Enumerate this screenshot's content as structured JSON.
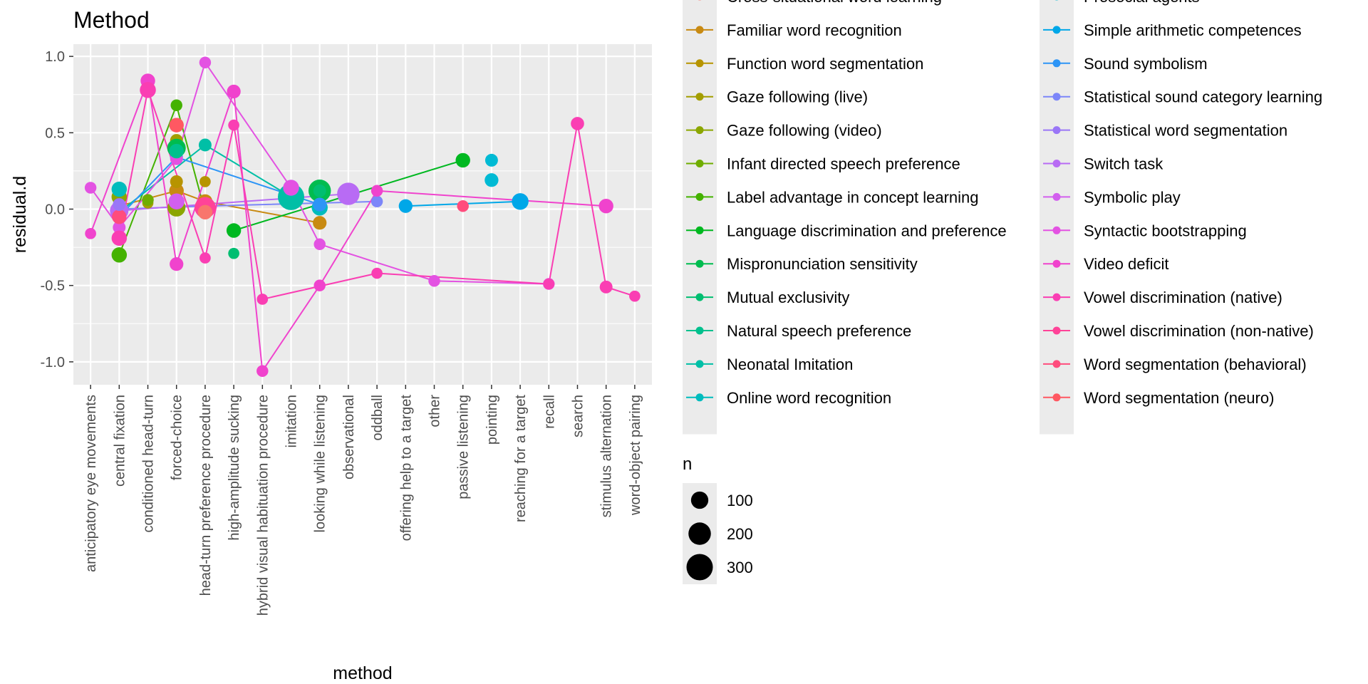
{
  "chart_data": {
    "type": "scatter",
    "title": "Method",
    "xlabel": "method",
    "ylabel": "residual.d",
    "ylim": [
      -1.15,
      1.08
    ],
    "yticks": [
      -1.0,
      -0.5,
      0.0,
      0.5,
      1.0
    ],
    "ytick_labels": [
      "-1.0",
      "-0.5",
      "0.0",
      "0.5",
      "1.0"
    ],
    "grid": true,
    "categories": [
      "anticipatory eye movements",
      "central fixation",
      "conditioned head-turn",
      "forced-choice",
      "head-turn preference procedure",
      "high-amplitude sucking",
      "hybrid visual habituation procedure",
      "imitation",
      "looking while listening",
      "observational",
      "oddball",
      "offering help to a target",
      "other",
      "passive listening",
      "pointing",
      "reaching for a target",
      "recall",
      "search",
      "stimulus alternation",
      "word-object pairing"
    ],
    "legend": {
      "color_title": "",
      "columns": [
        [
          {
            "name": "Cross-situational word learning",
            "color": "#F8766D"
          },
          {
            "name": "Familiar word recognition",
            "color": "#C88A12"
          },
          {
            "name": "Function word segmentation",
            "color": "#B79400"
          },
          {
            "name": "Gaze following (live)",
            "color": "#A39E00"
          },
          {
            "name": "Gaze following (video)",
            "color": "#8BA600"
          },
          {
            "name": "Infant directed speech preference",
            "color": "#6FAD00"
          },
          {
            "name": "Label advantage in concept learning",
            "color": "#44B200"
          },
          {
            "name": "Language discrimination and preference",
            "color": "#00B820"
          },
          {
            "name": "Mispronunciation sensitivity",
            "color": "#00BC4F"
          },
          {
            "name": "Mutual exclusivity",
            "color": "#00BE71"
          },
          {
            "name": "Natural speech preference",
            "color": "#00C08D"
          },
          {
            "name": "Neonatal Imitation",
            "color": "#00BFA6"
          },
          {
            "name": "Online word recognition",
            "color": "#00BCBD"
          }
        ],
        [
          {
            "name": "Prosocial agents",
            "color": "#00BAD4"
          },
          {
            "name": "Simple arithmetic competences",
            "color": "#00A7E8"
          },
          {
            "name": "Sound symbolism",
            "color": "#2D95F6"
          },
          {
            "name": "Statistical sound category learning",
            "color": "#7C86F9"
          },
          {
            "name": "Statistical word segmentation",
            "color": "#9A76F7"
          },
          {
            "name": "Switch task",
            "color": "#B86BF4"
          },
          {
            "name": "Symbolic play",
            "color": "#D25FEE"
          },
          {
            "name": "Syntactic bootstrapping",
            "color": "#E352E2"
          },
          {
            "name": "Video deficit",
            "color": "#F043CD"
          },
          {
            "name": "Vowel discrimination (native)",
            "color": "#FA3EB3"
          },
          {
            "name": "Vowel discrimination (non-native)",
            "color": "#FF4398"
          },
          {
            "name": "Word segmentation (behavioral)",
            "color": "#FF4C7D"
          },
          {
            "name": "Word segmentation (neuro)",
            "color": "#FF5862"
          }
        ]
      ],
      "size_title": "n",
      "size_entries": [
        {
          "label": "100",
          "n": 100
        },
        {
          "label": "200",
          "n": 200
        },
        {
          "label": "300",
          "n": 300
        }
      ]
    },
    "series": [
      {
        "name": "Familiar word recognition",
        "color": "#C88A12",
        "line": true,
        "points": [
          {
            "x": "central fixation",
            "y": 0.02,
            "n": 40
          },
          {
            "x": "forced-choice",
            "y": 0.12,
            "n": 60
          },
          {
            "x": "head-turn preference procedure",
            "y": 0.05,
            "n": 60
          },
          {
            "x": "looking while listening",
            "y": -0.09,
            "n": 50
          }
        ]
      },
      {
        "name": "Function word segmentation",
        "color": "#B79400",
        "line": false,
        "points": [
          {
            "x": "head-turn preference procedure",
            "y": 0.18,
            "n": 25
          },
          {
            "x": "forced-choice",
            "y": 0.18,
            "n": 40
          }
        ]
      },
      {
        "name": "Gaze following (live)",
        "color": "#A39E00",
        "line": false,
        "points": [
          {
            "x": "conditioned head-turn",
            "y": 0.04,
            "n": 25
          },
          {
            "x": "forced-choice",
            "y": 0.45,
            "n": 40
          }
        ]
      },
      {
        "name": "Gaze following (video)",
        "color": "#8BA600",
        "line": false,
        "points": [
          {
            "x": "central fixation",
            "y": 0.08,
            "n": 70
          },
          {
            "x": "forced-choice",
            "y": 0.01,
            "n": 110
          }
        ]
      },
      {
        "name": "Label advantage in concept learning",
        "color": "#44B200",
        "line": true,
        "points": [
          {
            "x": "central fixation",
            "y": -0.3,
            "n": 70
          },
          {
            "x": "forced-choice",
            "y": 0.68,
            "n": 30
          },
          {
            "x": "head-turn preference procedure",
            "y": -0.02,
            "n": 40
          }
        ]
      },
      {
        "name": "Language discrimination and preference",
        "color": "#00B820",
        "line": true,
        "points": [
          {
            "x": "high-amplitude sucking",
            "y": -0.14,
            "n": 60
          },
          {
            "x": "passive listening",
            "y": 0.32,
            "n": 60
          }
        ]
      },
      {
        "name": "Mispronunciation sensitivity",
        "color": "#00BC4F",
        "line": false,
        "points": [
          {
            "x": "forced-choice",
            "y": 0.4,
            "n": 120
          },
          {
            "x": "looking while listening",
            "y": 0.12,
            "n": 200
          }
        ]
      },
      {
        "name": "Mutual exclusivity",
        "color": "#00BE71",
        "line": false,
        "points": [
          {
            "x": "high-amplitude sucking",
            "y": -0.29,
            "n": 25
          },
          {
            "x": "looking while listening",
            "y": 0.12,
            "n": 40
          }
        ]
      },
      {
        "name": "Neonatal Imitation",
        "color": "#00BFA6",
        "line": true,
        "points": [
          {
            "x": "central fixation",
            "y": -0.02,
            "n": 30
          },
          {
            "x": "head-turn preference procedure",
            "y": 0.42,
            "n": 40
          },
          {
            "x": "imitation",
            "y": 0.08,
            "n": 300
          }
        ]
      },
      {
        "name": "Online word recognition",
        "color": "#00BCBD",
        "line": false,
        "points": [
          {
            "x": "central fixation",
            "y": 0.13,
            "n": 70
          },
          {
            "x": "looking while listening",
            "y": 0.01,
            "n": 80
          }
        ]
      },
      {
        "name": "Prosocial agents",
        "color": "#00BAD4",
        "line": false,
        "points": [
          {
            "x": "pointing",
            "y": 0.32,
            "n": 40
          },
          {
            "x": "pointing",
            "y": 0.19,
            "n": 50
          }
        ]
      },
      {
        "name": "Simple arithmetic competences",
        "color": "#00A7E8",
        "line": true,
        "points": [
          {
            "x": "offering help to a target",
            "y": 0.02,
            "n": 50
          },
          {
            "x": "reaching for a target",
            "y": 0.05,
            "n": 90
          }
        ]
      },
      {
        "name": "Sound symbolism",
        "color": "#2D95F6",
        "line": true,
        "points": [
          {
            "x": "central fixation",
            "y": -0.05,
            "n": 40
          },
          {
            "x": "forced-choice",
            "y": 0.34,
            "n": 40
          },
          {
            "x": "looking while listening",
            "y": 0.03,
            "n": 50
          }
        ]
      },
      {
        "name": "Statistical sound category learning",
        "color": "#7C86F9",
        "line": true,
        "points": [
          {
            "x": "central fixation",
            "y": 0.0,
            "n": 40
          },
          {
            "x": "head-turn preference procedure",
            "y": 0.02,
            "n": 40
          },
          {
            "x": "oddball",
            "y": 0.05,
            "n": 30
          }
        ]
      },
      {
        "name": "Switch task",
        "color": "#B86BF4",
        "line": true,
        "points": [
          {
            "x": "central fixation",
            "y": -0.01,
            "n": 120
          },
          {
            "x": "observational",
            "y": 0.1,
            "n": 200
          }
        ]
      },
      {
        "name": "Symbolic play",
        "color": "#D25FEE",
        "line": false,
        "points": [
          {
            "x": "forced-choice",
            "y": 0.05,
            "n": 80
          },
          {
            "x": "imitation",
            "y": 0.14,
            "n": 80
          }
        ]
      },
      {
        "name": "Syntactic bootstrapping",
        "color": "#E352E2",
        "line": true,
        "points": [
          {
            "x": "anticipatory eye movements",
            "y": 0.14,
            "n": 30
          },
          {
            "x": "central fixation",
            "y": -0.12,
            "n": 40
          },
          {
            "x": "forced-choice",
            "y": 0.33,
            "n": 40
          },
          {
            "x": "head-turn preference procedure",
            "y": 0.96,
            "n": 30
          },
          {
            "x": "imitation",
            "y": 0.14,
            "n": 70
          },
          {
            "x": "looking while listening",
            "y": -0.23,
            "n": 30
          },
          {
            "x": "other",
            "y": -0.47,
            "n": 30
          },
          {
            "x": "recall",
            "y": -0.49,
            "n": 30
          }
        ]
      },
      {
        "name": "Video deficit",
        "color": "#F043CD",
        "line": true,
        "points": [
          {
            "x": "anticipatory eye movements",
            "y": -0.16,
            "n": 25
          },
          {
            "x": "conditioned head-turn",
            "y": 0.84,
            "n": 60
          },
          {
            "x": "forced-choice",
            "y": -0.36,
            "n": 50
          },
          {
            "x": "high-amplitude sucking",
            "y": 0.77,
            "n": 50
          },
          {
            "x": "hybrid visual habituation procedure",
            "y": -1.06,
            "n": 30
          },
          {
            "x": "looking while listening",
            "y": -0.5,
            "n": 30
          },
          {
            "x": "oddball",
            "y": 0.12,
            "n": 30
          },
          {
            "x": "stimulus alternation",
            "y": 0.02,
            "n": 60
          }
        ]
      },
      {
        "name": "Vowel discrimination (native)",
        "color": "#FA3EB3",
        "line": true,
        "points": [
          {
            "x": "central fixation",
            "y": -0.19,
            "n": 70
          },
          {
            "x": "conditioned head-turn",
            "y": 0.78,
            "n": 80
          },
          {
            "x": "head-turn preference procedure",
            "y": -0.32,
            "n": 25
          },
          {
            "x": "high-amplitude sucking",
            "y": 0.55,
            "n": 25
          },
          {
            "x": "hybrid visual habituation procedure",
            "y": -0.59,
            "n": 25
          },
          {
            "x": "oddball",
            "y": -0.42,
            "n": 25
          },
          {
            "x": "recall",
            "y": -0.49,
            "n": 25
          },
          {
            "x": "search",
            "y": 0.56,
            "n": 45
          },
          {
            "x": "stimulus alternation",
            "y": -0.51,
            "n": 40
          },
          {
            "x": "word-object pairing",
            "y": -0.57,
            "n": 25
          }
        ]
      },
      {
        "name": "Vowel discrimination (non-native)",
        "color": "#FF4398",
        "line": false,
        "points": [
          {
            "x": "head-turn preference procedure",
            "y": 0.01,
            "n": 170
          }
        ]
      },
      {
        "name": "Word segmentation (behavioral)",
        "color": "#FF4C7D",
        "line": false,
        "points": [
          {
            "x": "central fixation",
            "y": -0.05,
            "n": 60
          },
          {
            "x": "passive listening",
            "y": 0.02,
            "n": 30
          }
        ]
      },
      {
        "name": "Cross-situational word learning",
        "color": "#F8766D",
        "line": false,
        "points": [
          {
            "x": "head-turn preference procedure",
            "y": -0.02,
            "n": 60
          }
        ]
      },
      {
        "name": "Infant directed speech preference",
        "color": "#6FAD00",
        "line": false,
        "points": [
          {
            "x": "conditioned head-turn",
            "y": 0.06,
            "n": 30
          }
        ]
      },
      {
        "name": "Natural speech preference",
        "color": "#00C08D",
        "line": false,
        "points": [
          {
            "x": "forced-choice",
            "y": 0.38,
            "n": 60
          }
        ]
      },
      {
        "name": "Statistical word segmentation",
        "color": "#9A76F7",
        "line": false,
        "points": [
          {
            "x": "central fixation",
            "y": 0.03,
            "n": 40
          }
        ]
      },
      {
        "name": "Word segmentation (neuro)",
        "color": "#FF5862",
        "line": false,
        "points": [
          {
            "x": "forced-choice",
            "y": 0.55,
            "n": 60
          }
        ]
      }
    ]
  }
}
